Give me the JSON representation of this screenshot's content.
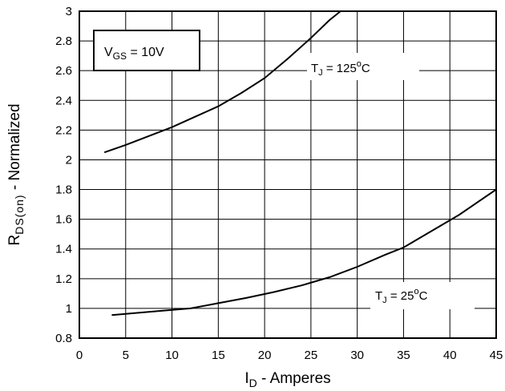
{
  "chart_data": {
    "type": "line",
    "xlabel": {
      "main": "I",
      "sub": "D",
      "rest": " - Amperes"
    },
    "ylabel": {
      "main": "R",
      "sub": "DS(on)",
      "rest": " - Normalized"
    },
    "xlim": [
      0,
      45
    ],
    "ylim": [
      0.8,
      3
    ],
    "xticks": [
      0,
      5,
      10,
      15,
      20,
      25,
      30,
      35,
      40,
      45
    ],
    "yticks": [
      0.8,
      1,
      1.2,
      1.4,
      1.6,
      1.8,
      2,
      2.2,
      2.4,
      2.6,
      2.8,
      3
    ],
    "grid": true,
    "condition_box": {
      "main": "V",
      "sub": "GS",
      "rest": " = 10V"
    },
    "series": [
      {
        "label": {
          "main": "T",
          "sub": "J",
          "rest": " = 125",
          "sup": "o",
          "tail": "C"
        },
        "x": [
          2.7,
          5,
          7.5,
          10,
          12.5,
          15,
          17.5,
          20,
          22.5,
          25,
          26,
          27,
          28.2
        ],
        "y": [
          2.05,
          2.1,
          2.16,
          2.22,
          2.29,
          2.36,
          2.45,
          2.55,
          2.68,
          2.82,
          2.88,
          2.94,
          3.0
        ]
      },
      {
        "label": {
          "main": "T",
          "sub": "J",
          "rest": " = 25",
          "sup": "o",
          "tail": "C"
        },
        "x": [
          3.5,
          6,
          9,
          12,
          15,
          18,
          21,
          24,
          27,
          30,
          33,
          35,
          38,
          41,
          45
        ],
        "y": [
          0.955,
          0.968,
          0.985,
          1.0,
          1.035,
          1.07,
          1.11,
          1.155,
          1.21,
          1.28,
          1.36,
          1.41,
          1.52,
          1.63,
          1.8
        ]
      }
    ]
  }
}
